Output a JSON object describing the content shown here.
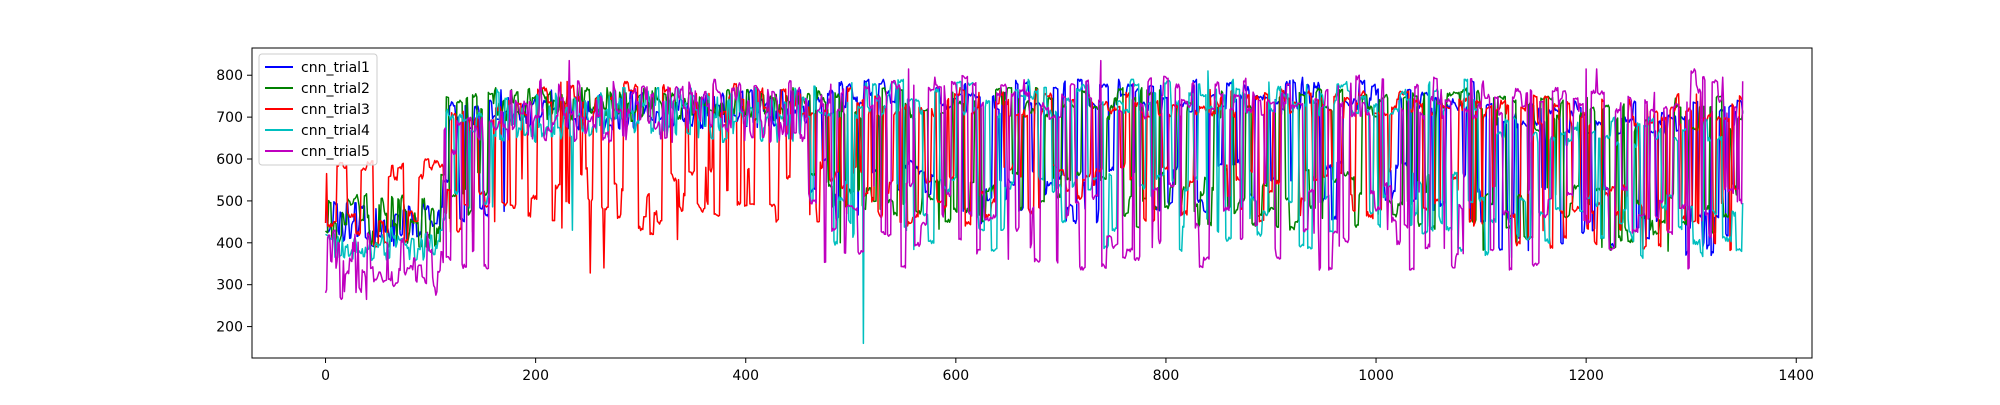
{
  "chart_data": {
    "type": "line",
    "title": "",
    "xlabel": "",
    "ylabel": "",
    "xlim": [
      -70,
      1415
    ],
    "ylim": [
      125,
      865
    ],
    "xticks": [
      0,
      200,
      400,
      600,
      800,
      1000,
      1200,
      1400
    ],
    "yticks": [
      200,
      300,
      400,
      500,
      600,
      700,
      800
    ],
    "grid": false,
    "legend_position": "top-left",
    "n_points": 1350,
    "series": [
      {
        "name": "cnn_trial1",
        "color": "#0000ff",
        "segments": [
          {
            "x": [
              0,
              110
            ],
            "low": 390,
            "high": 500
          },
          {
            "x": [
              110,
              160
            ],
            "low": 440,
            "high": 740
          },
          {
            "x": [
              160,
              460
            ],
            "low": 670,
            "high": 765
          },
          {
            "x": [
              460,
              1100
            ],
            "low": 440,
            "high": 790
          },
          {
            "x": [
              1100,
              1345
            ],
            "low": 370,
            "high": 740
          }
        ],
        "spikes": [
          {
            "x": 170,
            "y": 475
          },
          {
            "x": 930,
            "y": 795
          },
          {
            "x": 1160,
            "y": 690
          }
        ]
      },
      {
        "name": "cnn_trial2",
        "color": "#008000",
        "segments": [
          {
            "x": [
              0,
              110
            ],
            "low": 390,
            "high": 520
          },
          {
            "x": [
              110,
              160
            ],
            "low": 450,
            "high": 760
          },
          {
            "x": [
              160,
              460
            ],
            "low": 690,
            "high": 770
          },
          {
            "x": [
              460,
              1100
            ],
            "low": 430,
            "high": 770
          },
          {
            "x": [
              1100,
              1345
            ],
            "low": 380,
            "high": 750
          }
        ],
        "spikes": [
          {
            "x": 1285,
            "y": 745
          },
          {
            "x": 490,
            "y": 400
          }
        ]
      },
      {
        "name": "cnn_trial3",
        "color": "#ff0000",
        "segments": [
          {
            "x": [
              0,
              110
            ],
            "low": 390,
            "high": 600
          },
          {
            "x": [
              110,
              160
            ],
            "low": 420,
            "high": 720
          },
          {
            "x": [
              160,
              460
            ],
            "low": 420,
            "high": 785
          },
          {
            "x": [
              460,
              1100
            ],
            "low": 440,
            "high": 770
          },
          {
            "x": [
              1100,
              1345
            ],
            "low": 380,
            "high": 760
          }
        ],
        "spikes": [
          {
            "x": 1,
            "y": 565
          },
          {
            "x": 252,
            "y": 328
          },
          {
            "x": 265,
            "y": 340
          },
          {
            "x": 335,
            "y": 408
          },
          {
            "x": 230,
            "y": 785
          },
          {
            "x": 1305,
            "y": 755
          }
        ]
      },
      {
        "name": "cnn_trial4",
        "color": "#00bfbf",
        "segments": [
          {
            "x": [
              0,
              110
            ],
            "low": 355,
            "high": 440
          },
          {
            "x": [
              110,
              160
            ],
            "low": 430,
            "high": 730
          },
          {
            "x": [
              160,
              460
            ],
            "low": 640,
            "high": 770
          },
          {
            "x": [
              460,
              1100
            ],
            "low": 380,
            "high": 790
          },
          {
            "x": [
              1100,
              1345
            ],
            "low": 360,
            "high": 700
          }
        ],
        "spikes": [
          {
            "x": 512,
            "y": 160
          },
          {
            "x": 235,
            "y": 430
          },
          {
            "x": 840,
            "y": 810
          }
        ]
      },
      {
        "name": "cnn_trial5",
        "color": "#bf00bf",
        "segments": [
          {
            "x": [
              0,
              110
            ],
            "low": 265,
            "high": 430
          },
          {
            "x": [
              110,
              160
            ],
            "low": 320,
            "high": 700
          },
          {
            "x": [
              160,
              460
            ],
            "low": 640,
            "high": 790
          },
          {
            "x": [
              460,
              1100
            ],
            "low": 335,
            "high": 800
          },
          {
            "x": [
              1100,
              1345
            ],
            "low": 335,
            "high": 815
          }
        ],
        "spikes": [
          {
            "x": 232,
            "y": 835
          },
          {
            "x": 738,
            "y": 835
          },
          {
            "x": 555,
            "y": 815
          },
          {
            "x": 1200,
            "y": 815
          },
          {
            "x": 1210,
            "y": 815
          },
          {
            "x": 1345,
            "y": 700
          }
        ]
      }
    ]
  }
}
